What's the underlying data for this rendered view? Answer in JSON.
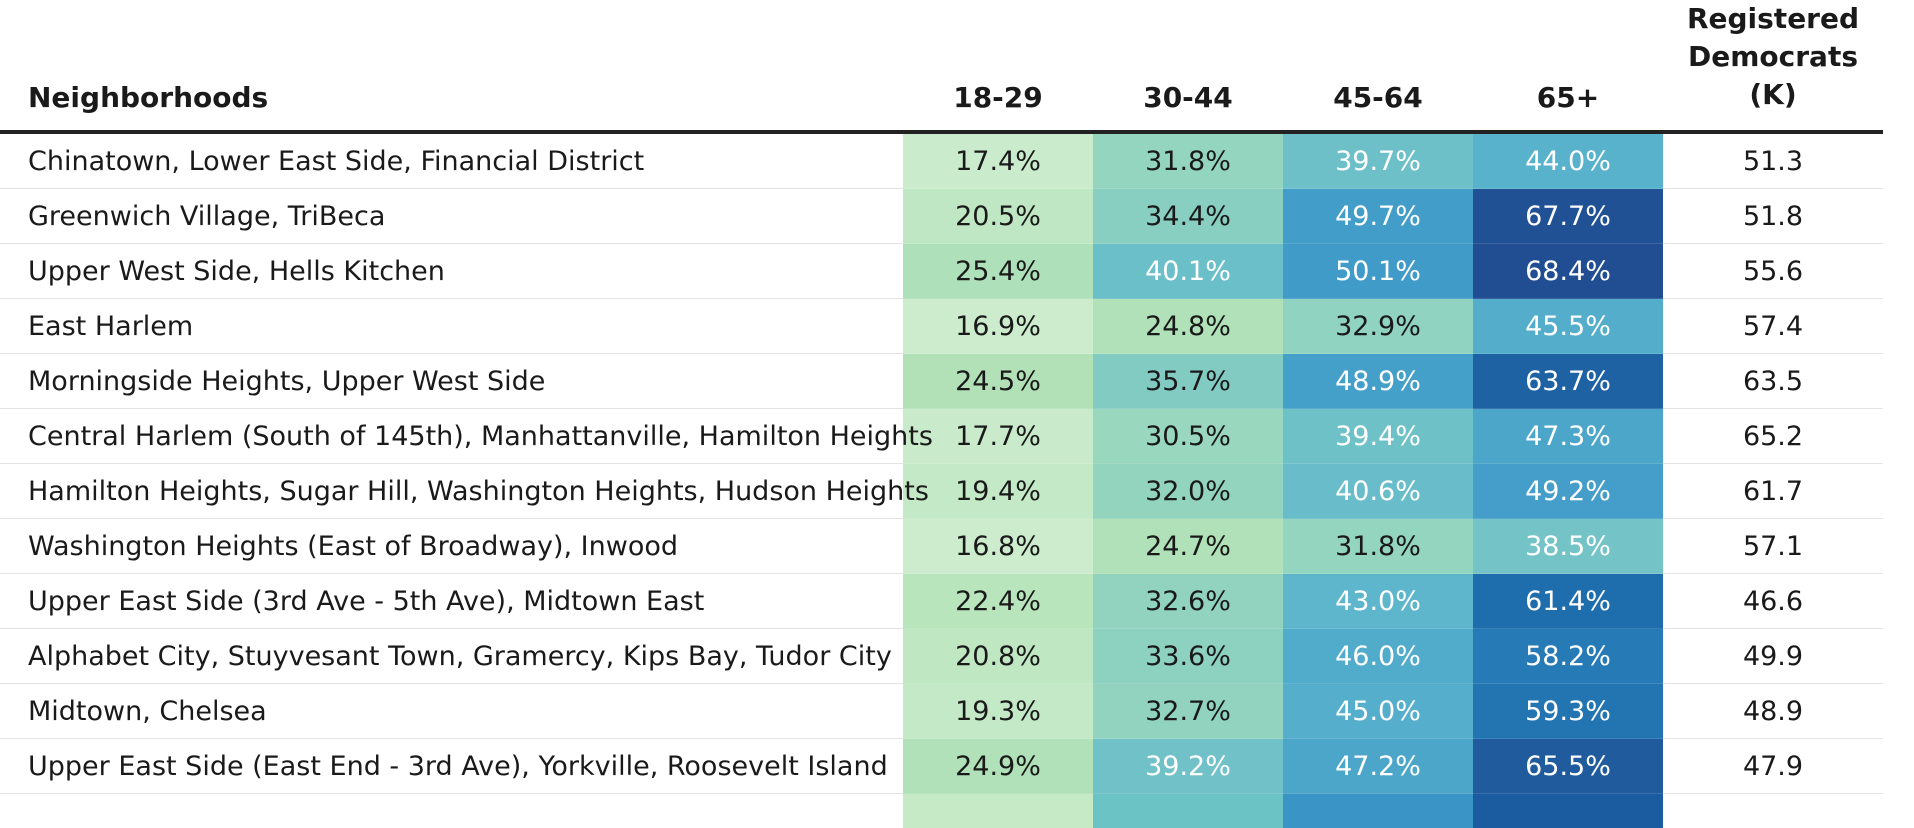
{
  "chart_data": {
    "type": "table",
    "columns": [
      "Neighborhoods",
      "18-29",
      "30-44",
      "45-64",
      "65+",
      "Registered\nDemocrats (K)"
    ],
    "rows": [
      {
        "neighborhood": "Chinatown, Lower East Side, Financial District",
        "values": [
          "17.4%",
          "31.8%",
          "39.7%",
          "44.0%"
        ],
        "registered": "51.3"
      },
      {
        "neighborhood": "Greenwich Village, TriBeca",
        "values": [
          "20.5%",
          "34.4%",
          "49.7%",
          "67.7%"
        ],
        "registered": "51.8"
      },
      {
        "neighborhood": "Upper West Side, Hells Kitchen",
        "values": [
          "25.4%",
          "40.1%",
          "50.1%",
          "68.4%"
        ],
        "registered": "55.6"
      },
      {
        "neighborhood": "East Harlem",
        "values": [
          "16.9%",
          "24.8%",
          "32.9%",
          "45.5%"
        ],
        "registered": "57.4"
      },
      {
        "neighborhood": "Morningside Heights, Upper West Side",
        "values": [
          "24.5%",
          "35.7%",
          "48.9%",
          "63.7%"
        ],
        "registered": "63.5"
      },
      {
        "neighborhood": "Central Harlem (South of 145th), Manhattanville, Hamilton Heights",
        "values": [
          "17.7%",
          "30.5%",
          "39.4%",
          "47.3%"
        ],
        "registered": "65.2"
      },
      {
        "neighborhood": "Hamilton Heights, Sugar Hill, Washington Heights, Hudson Heights",
        "values": [
          "19.4%",
          "32.0%",
          "40.6%",
          "49.2%"
        ],
        "registered": "61.7"
      },
      {
        "neighborhood": "Washington Heights (East of Broadway), Inwood",
        "values": [
          "16.8%",
          "24.7%",
          "31.8%",
          "38.5%"
        ],
        "registered": "57.1"
      },
      {
        "neighborhood": "Upper East Side (3rd Ave - 5th Ave), Midtown East",
        "values": [
          "22.4%",
          "32.6%",
          "43.0%",
          "61.4%"
        ],
        "registered": "46.6"
      },
      {
        "neighborhood": "Alphabet City, Stuyvesant Town, Gramercy, Kips Bay, Tudor City",
        "values": [
          "20.8%",
          "33.6%",
          "46.0%",
          "58.2%"
        ],
        "registered": "49.9"
      },
      {
        "neighborhood": "Midtown, Chelsea",
        "values": [
          "19.3%",
          "32.7%",
          "45.0%",
          "59.3%"
        ],
        "registered": "48.9"
      },
      {
        "neighborhood": "Upper East Side (East End - 3rd Ave), Yorkville, Roosevelt Island",
        "values": [
          "24.9%",
          "39.2%",
          "47.2%",
          "65.5%"
        ],
        "registered": "47.9"
      }
    ],
    "partial_row_colors": [
      "#c6e9c6",
      "#6cc3c6",
      "#3a94c6",
      "#1b5ba0"
    ],
    "color_scale": {
      "stops": [
        "#d3efd3",
        "#b3e2b8",
        "#8ed2c0",
        "#5fb8cc",
        "#3a95c8",
        "#1e6fae",
        "#22478c"
      ],
      "domain": [
        15,
        70
      ],
      "light_text": "#ffffff",
      "dark_text": "#1a1a1a",
      "light_text_threshold": 38
    }
  }
}
